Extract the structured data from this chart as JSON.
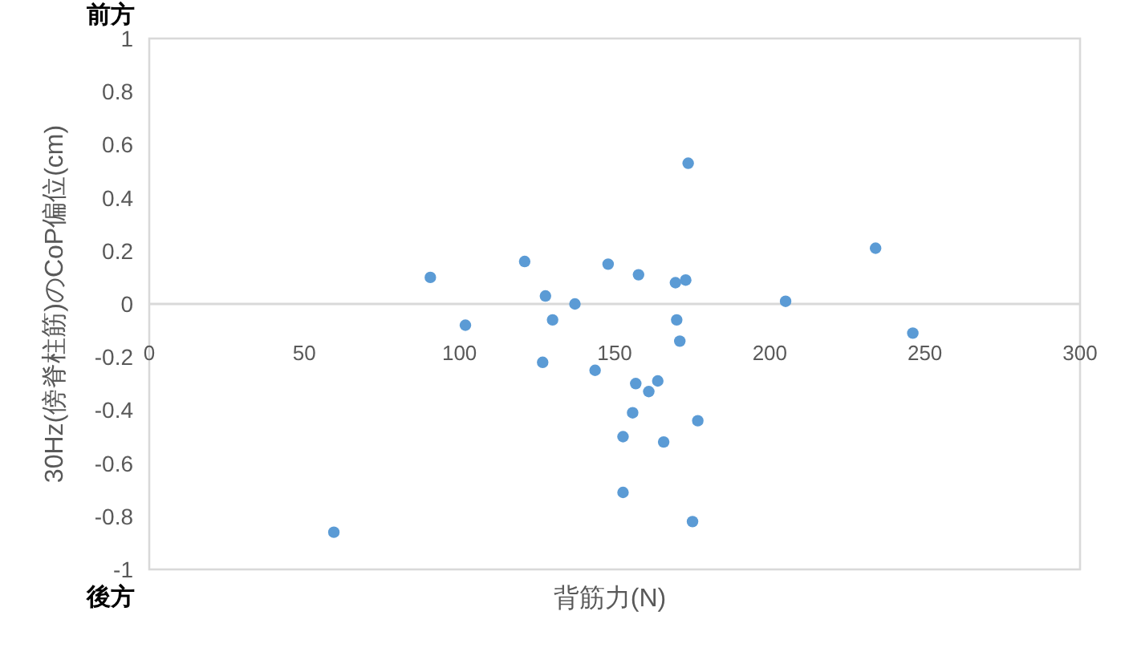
{
  "chart_data": {
    "type": "scatter",
    "xlabel": "背筋力(N)",
    "ylabel": "30Hz(傍脊柱筋)のCoP偏位(cm)",
    "annotations": [
      "前方",
      "後方"
    ],
    "series": [
      {
        "color": "#5b9bd5",
        "x": [
          59.5,
          90.6,
          101.9,
          121,
          127.7,
          126.8,
          130,
          137.2,
          143.7,
          147.9,
          157.7,
          169.6,
          172.9,
          173.7,
          170,
          171,
          156.8,
          163.9,
          161,
          155.8,
          176.8,
          152.7,
          165.8,
          152.7,
          175.1,
          205.1,
          234.1,
          246.1
        ],
        "values": [
          -0.86,
          0.1,
          -0.08,
          0.16,
          0.03,
          -0.22,
          -0.06,
          0,
          -0.25,
          0.15,
          0.11,
          0.08,
          0.09,
          0.53,
          -0.06,
          -0.14,
          -0.3,
          -0.29,
          -0.33,
          -0.41,
          -0.44,
          -0.5,
          -0.52,
          -0.71,
          -0.82,
          0.01,
          0.21,
          -0.11
        ]
      }
    ],
    "xlim": [
      0,
      300
    ],
    "xticks": [
      0,
      50,
      100,
      150,
      200,
      250,
      300
    ],
    "ylim": [
      -1,
      1
    ],
    "yticks": [
      -1,
      -0.8,
      -0.6,
      -0.4,
      -0.2,
      0,
      0.2,
      0.4,
      0.6,
      0.8,
      1
    ],
    "marker": "circle"
  }
}
